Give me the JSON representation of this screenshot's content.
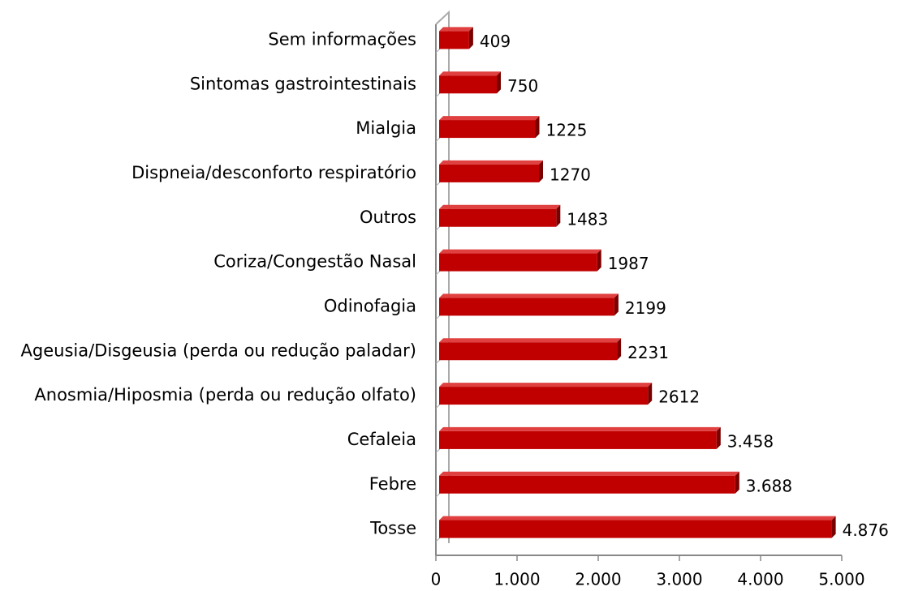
{
  "chart_data": {
    "type": "bar",
    "orientation": "horizontal",
    "categories": [
      "Sem informações",
      "Sintomas gastrointestinais",
      "Mialgia",
      "Dispneia/desconforto respiratório",
      "Outros",
      "Coriza/Congestão Nasal",
      "Odinofagia",
      "Ageusia/Disgeusia (perda ou redução paladar)",
      "Anosmia/Hiposmia (perda ou redução olfato)",
      "Cefaleia",
      "Febre",
      "Tosse"
    ],
    "values": [
      409,
      750,
      1225,
      1270,
      1483,
      1987,
      2199,
      2231,
      2612,
      3458,
      3688,
      4876
    ],
    "value_labels": [
      "409",
      "750",
      "1225",
      "1270",
      "1483",
      "1987",
      "2199",
      "2231",
      "2612",
      "3.458",
      "3.688",
      "4.876"
    ],
    "color": "#c00000",
    "xlim": [
      0,
      5000
    ],
    "xticks": [
      0,
      {
        "value": 1000,
        "label": "1.000"
      },
      {
        "value": 2000,
        "label": "2.000"
      },
      {
        "value": 3000,
        "label": "3.000"
      },
      {
        "value": 4000,
        "label": "4.000"
      },
      {
        "value": 5000,
        "label": "5.000"
      }
    ]
  }
}
